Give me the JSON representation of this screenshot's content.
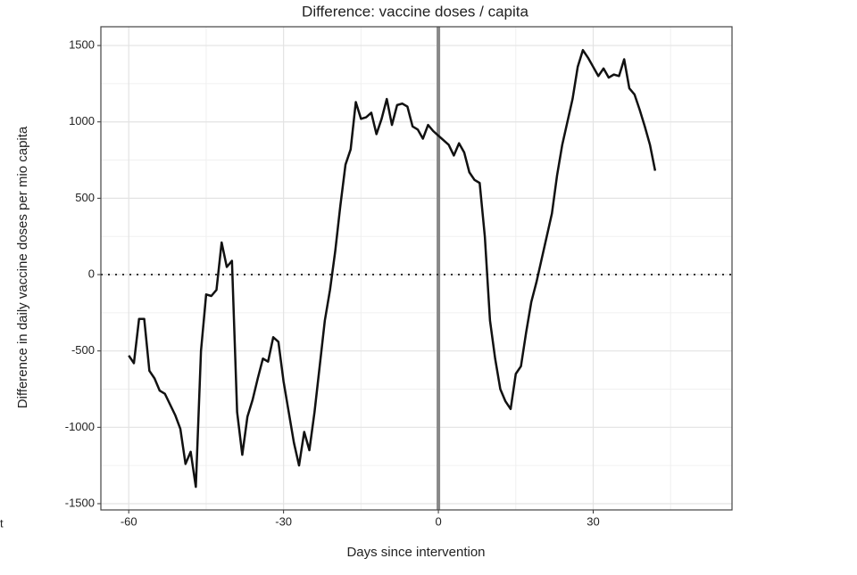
{
  "chart_data": {
    "type": "line",
    "title": "Difference: vaccine doses / capita",
    "x_label": "Days since intervention",
    "y_label": "Difference in daily vaccine doses per mio capita",
    "stray_text": "t",
    "x": [
      -60,
      -59,
      -58,
      -57,
      -56,
      -55,
      -54,
      -53,
      -52,
      -51,
      -50,
      -49,
      -48,
      -47,
      -46,
      -45,
      -44,
      -43,
      -42,
      -41,
      -40,
      -39,
      -38,
      -37,
      -36,
      -35,
      -34,
      -33,
      -32,
      -31,
      -30,
      -29,
      -28,
      -27,
      -26,
      -25,
      -24,
      -23,
      -22,
      -21,
      -20,
      -19,
      -18,
      -17,
      -16,
      -15,
      -14,
      -13,
      -12,
      -11,
      -10,
      -9,
      -8,
      -7,
      -6,
      -5,
      -4,
      -3,
      -2,
      -1,
      0,
      1,
      2,
      3,
      4,
      5,
      6,
      7,
      8,
      9,
      10,
      11,
      12,
      13,
      14,
      15,
      16,
      17,
      18,
      19,
      20,
      21,
      22,
      23,
      24,
      25,
      26,
      27,
      28,
      29,
      30,
      31,
      32,
      33,
      34,
      35,
      36,
      37,
      38,
      39,
      40,
      41,
      42
    ],
    "series": [
      {
        "color": "#111111",
        "values": [
          -530,
          -580,
          -290,
          -290,
          -630,
          -680,
          -760,
          -780,
          -850,
          -920,
          -1010,
          -1240,
          -1160,
          -1390,
          -500,
          -130,
          -140,
          -100,
          210,
          50,
          90,
          -900,
          -1180,
          -930,
          -820,
          -680,
          -550,
          -570,
          -410,
          -440,
          -700,
          -900,
          -1100,
          -1250,
          -1030,
          -1150,
          -900,
          -600,
          -300,
          -100,
          150,
          450,
          720,
          820,
          1130,
          1020,
          1030,
          1060,
          920,
          1020,
          1150,
          980,
          1110,
          1120,
          1100,
          970,
          950,
          890,
          980,
          940,
          910,
          880,
          850,
          780,
          860,
          800,
          670,
          620,
          600,
          250,
          -300,
          -550,
          -750,
          -830,
          -880,
          -650,
          -600,
          -380,
          -180,
          -50,
          100,
          250,
          400,
          650,
          850,
          1000,
          1150,
          1360,
          1470,
          1420,
          1360,
          1300,
          1350,
          1290,
          1310,
          1300,
          1410,
          1220,
          1180,
          1080,
          970,
          850,
          680
        ]
      }
    ],
    "xlim": [
      -65.4,
      56.9
    ],
    "ylim": [
      -1541,
      1623
    ],
    "xticks": [
      -60,
      -30,
      0,
      30
    ],
    "yticks": [
      -1500,
      -1000,
      -500,
      0,
      500,
      1000,
      1500
    ],
    "x_minor_grid": [
      -45,
      -15,
      15,
      45
    ],
    "y_minor_grid": [
      -1250,
      -750,
      -250,
      250,
      750,
      1250
    ],
    "hline": 0,
    "vline": 0,
    "grid": true
  }
}
